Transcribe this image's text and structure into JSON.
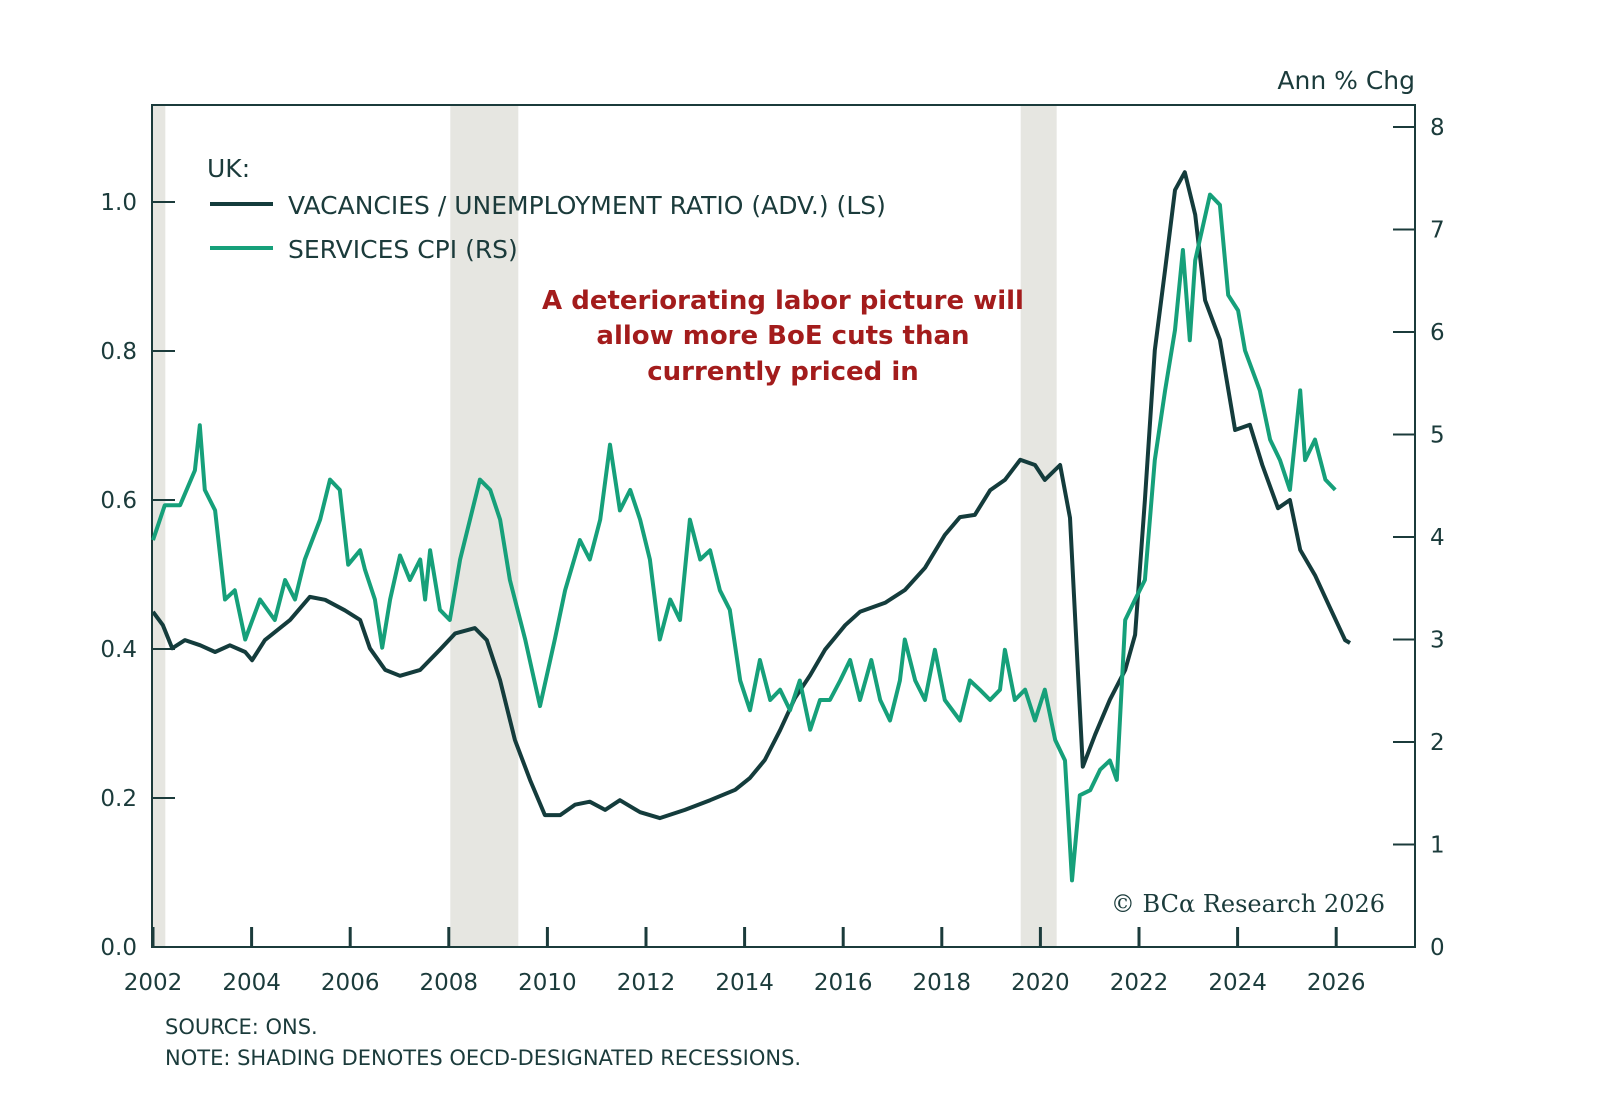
{
  "chart_data": {
    "type": "line",
    "xlim": [
      2002,
      2027.6
    ],
    "x_ticks": [
      "2002",
      "2004",
      "2006",
      "2008",
      "2010",
      "2012",
      "2014",
      "2016",
      "2018",
      "2020",
      "2022",
      "2024",
      "2026"
    ],
    "left_axis": {
      "ylim": [
        0,
        1.1
      ],
      "ticks": [
        "0.0",
        "0.2",
        "0.4",
        "0.6",
        "0.8",
        "1.0"
      ]
    },
    "right_axis": {
      "label": "Ann % Chg",
      "ylim": [
        0,
        8.2
      ],
      "ticks": [
        "0",
        "1",
        "2",
        "3",
        "4",
        "5",
        "6",
        "7",
        "8"
      ]
    },
    "legend_title": "UK:",
    "legend_placement": "top-left",
    "grid": false,
    "recessions": [
      [
        2002.0,
        2002.25
      ],
      [
        2008.03,
        2009.41
      ],
      [
        2019.6,
        2020.33
      ]
    ],
    "annotation": [
      "A deteriorating labor picture will",
      "allow more BoE cuts than",
      "currently priced in"
    ],
    "series": [
      {
        "name": "VACANCIES / UNEMPLOYMENT RATIO (ADV.) (LS)",
        "axis": "left",
        "color": "#143c3c",
        "points": [
          [
            2002.0,
            0.45
          ],
          [
            2002.2,
            0.432
          ],
          [
            2002.39,
            0.401
          ],
          [
            2002.65,
            0.412
          ],
          [
            2002.96,
            0.405
          ],
          [
            2003.26,
            0.396
          ],
          [
            2003.56,
            0.405
          ],
          [
            2003.87,
            0.396
          ],
          [
            2004.01,
            0.385
          ],
          [
            2004.27,
            0.412
          ],
          [
            2004.78,
            0.439
          ],
          [
            2005.18,
            0.47
          ],
          [
            2005.49,
            0.466
          ],
          [
            2005.89,
            0.452
          ],
          [
            2006.2,
            0.439
          ],
          [
            2006.4,
            0.401
          ],
          [
            2006.71,
            0.372
          ],
          [
            2007.01,
            0.364
          ],
          [
            2007.42,
            0.372
          ],
          [
            2007.82,
            0.399
          ],
          [
            2008.13,
            0.421
          ],
          [
            2008.53,
            0.428
          ],
          [
            2008.77,
            0.412
          ],
          [
            2009.04,
            0.358
          ],
          [
            2009.34,
            0.278
          ],
          [
            2009.65,
            0.224
          ],
          [
            2009.95,
            0.177
          ],
          [
            2010.26,
            0.177
          ],
          [
            2010.56,
            0.191
          ],
          [
            2010.86,
            0.195
          ],
          [
            2011.17,
            0.184
          ],
          [
            2011.47,
            0.197
          ],
          [
            2011.88,
            0.181
          ],
          [
            2012.28,
            0.173
          ],
          [
            2012.79,
            0.184
          ],
          [
            2013.3,
            0.197
          ],
          [
            2013.81,
            0.211
          ],
          [
            2014.11,
            0.227
          ],
          [
            2014.41,
            0.251
          ],
          [
            2014.72,
            0.291
          ],
          [
            2015.02,
            0.334
          ],
          [
            2015.33,
            0.365
          ],
          [
            2015.63,
            0.399
          ],
          [
            2016.04,
            0.432
          ],
          [
            2016.34,
            0.45
          ],
          [
            2016.85,
            0.462
          ],
          [
            2017.25,
            0.479
          ],
          [
            2017.66,
            0.509
          ],
          [
            2018.06,
            0.553
          ],
          [
            2018.37,
            0.577
          ],
          [
            2018.67,
            0.58
          ],
          [
            2018.98,
            0.613
          ],
          [
            2019.28,
            0.627
          ],
          [
            2019.59,
            0.654
          ],
          [
            2019.89,
            0.647
          ],
          [
            2020.09,
            0.627
          ],
          [
            2020.4,
            0.647
          ],
          [
            2020.6,
            0.576
          ],
          [
            2020.86,
            0.242
          ],
          [
            2021.11,
            0.285
          ],
          [
            2021.41,
            0.332
          ],
          [
            2021.72,
            0.372
          ],
          [
            2021.92,
            0.419
          ],
          [
            2022.12,
            0.6
          ],
          [
            2022.32,
            0.801
          ],
          [
            2022.53,
            0.909
          ],
          [
            2022.73,
            1.016
          ],
          [
            2022.93,
            1.04
          ],
          [
            2023.14,
            0.983
          ],
          [
            2023.34,
            0.868
          ],
          [
            2023.64,
            0.815
          ],
          [
            2023.95,
            0.694
          ],
          [
            2024.25,
            0.701
          ],
          [
            2024.5,
            0.647
          ],
          [
            2024.82,
            0.589
          ],
          [
            2025.06,
            0.6
          ],
          [
            2025.27,
            0.533
          ],
          [
            2025.57,
            0.499
          ],
          [
            2025.87,
            0.456
          ],
          [
            2026.18,
            0.412
          ],
          [
            2026.28,
            0.408
          ]
        ]
      },
      {
        "name": "SERVICES CPI (RS)",
        "axis": "right",
        "color": "#16a07a",
        "points": [
          [
            2002.0,
            3.97
          ],
          [
            2002.24,
            4.31
          ],
          [
            2002.55,
            4.31
          ],
          [
            2002.85,
            4.65
          ],
          [
            2002.95,
            5.09
          ],
          [
            2003.05,
            4.46
          ],
          [
            2003.26,
            4.26
          ],
          [
            2003.46,
            3.39
          ],
          [
            2003.66,
            3.48
          ],
          [
            2003.87,
            3.0
          ],
          [
            2004.17,
            3.39
          ],
          [
            2004.47,
            3.19
          ],
          [
            2004.68,
            3.58
          ],
          [
            2004.88,
            3.39
          ],
          [
            2005.08,
            3.78
          ],
          [
            2005.39,
            4.17
          ],
          [
            2005.59,
            4.56
          ],
          [
            2005.79,
            4.46
          ],
          [
            2005.96,
            3.73
          ],
          [
            2006.2,
            3.87
          ],
          [
            2006.3,
            3.68
          ],
          [
            2006.5,
            3.39
          ],
          [
            2006.65,
            2.92
          ],
          [
            2006.81,
            3.39
          ],
          [
            2007.01,
            3.82
          ],
          [
            2007.21,
            3.58
          ],
          [
            2007.42,
            3.78
          ],
          [
            2007.52,
            3.39
          ],
          [
            2007.62,
            3.87
          ],
          [
            2007.82,
            3.29
          ],
          [
            2008.02,
            3.19
          ],
          [
            2008.23,
            3.78
          ],
          [
            2008.43,
            4.17
          ],
          [
            2008.63,
            4.56
          ],
          [
            2008.84,
            4.46
          ],
          [
            2009.04,
            4.17
          ],
          [
            2009.24,
            3.58
          ],
          [
            2009.55,
            3.0
          ],
          [
            2009.85,
            2.35
          ],
          [
            2010.15,
            3.0
          ],
          [
            2010.36,
            3.48
          ],
          [
            2010.66,
            3.97
          ],
          [
            2010.86,
            3.78
          ],
          [
            2011.07,
            4.17
          ],
          [
            2011.27,
            4.9
          ],
          [
            2011.47,
            4.26
          ],
          [
            2011.68,
            4.46
          ],
          [
            2011.88,
            4.17
          ],
          [
            2012.08,
            3.78
          ],
          [
            2012.28,
            3.0
          ],
          [
            2012.49,
            3.39
          ],
          [
            2012.69,
            3.19
          ],
          [
            2012.89,
            4.17
          ],
          [
            2013.1,
            3.78
          ],
          [
            2013.3,
            3.87
          ],
          [
            2013.5,
            3.48
          ],
          [
            2013.7,
            3.29
          ],
          [
            2013.91,
            2.6
          ],
          [
            2014.11,
            2.31
          ],
          [
            2014.31,
            2.8
          ],
          [
            2014.52,
            2.41
          ],
          [
            2014.72,
            2.51
          ],
          [
            2014.92,
            2.31
          ],
          [
            2015.12,
            2.6
          ],
          [
            2015.33,
            2.12
          ],
          [
            2015.53,
            2.41
          ],
          [
            2015.73,
            2.41
          ],
          [
            2015.94,
            2.6
          ],
          [
            2016.14,
            2.8
          ],
          [
            2016.34,
            2.41
          ],
          [
            2016.57,
            2.8
          ],
          [
            2016.75,
            2.41
          ],
          [
            2016.95,
            2.21
          ],
          [
            2017.15,
            2.6
          ],
          [
            2017.25,
            3.0
          ],
          [
            2017.46,
            2.6
          ],
          [
            2017.66,
            2.41
          ],
          [
            2017.86,
            2.9
          ],
          [
            2018.06,
            2.41
          ],
          [
            2018.37,
            2.21
          ],
          [
            2018.57,
            2.6
          ],
          [
            2018.77,
            2.51
          ],
          [
            2018.98,
            2.41
          ],
          [
            2019.18,
            2.51
          ],
          [
            2019.28,
            2.9
          ],
          [
            2019.48,
            2.41
          ],
          [
            2019.69,
            2.51
          ],
          [
            2019.89,
            2.21
          ],
          [
            2020.09,
            2.51
          ],
          [
            2020.3,
            2.02
          ],
          [
            2020.5,
            1.82
          ],
          [
            2020.64,
            0.65
          ],
          [
            2020.8,
            1.48
          ],
          [
            2021.01,
            1.53
          ],
          [
            2021.21,
            1.73
          ],
          [
            2021.41,
            1.82
          ],
          [
            2021.55,
            1.63
          ],
          [
            2021.72,
            3.19
          ],
          [
            2021.92,
            3.39
          ],
          [
            2022.12,
            3.58
          ],
          [
            2022.32,
            4.75
          ],
          [
            2022.53,
            5.43
          ],
          [
            2022.73,
            6.02
          ],
          [
            2022.89,
            6.8
          ],
          [
            2023.03,
            5.92
          ],
          [
            2023.14,
            6.7
          ],
          [
            2023.44,
            7.34
          ],
          [
            2023.64,
            7.24
          ],
          [
            2023.81,
            6.36
          ],
          [
            2024.01,
            6.21
          ],
          [
            2024.15,
            5.82
          ],
          [
            2024.45,
            5.43
          ],
          [
            2024.66,
            4.95
          ],
          [
            2024.86,
            4.75
          ],
          [
            2025.06,
            4.46
          ],
          [
            2025.27,
            5.43
          ],
          [
            2025.37,
            4.75
          ],
          [
            2025.57,
            4.95
          ],
          [
            2025.78,
            4.56
          ],
          [
            2025.98,
            4.46
          ]
        ]
      }
    ]
  },
  "copyright": "© BCα Research 2026",
  "footer": {
    "source": "SOURCE: ONS.",
    "note": "NOTE: SHADING DENOTES OECD-DESIGNATED RECESSIONS."
  }
}
